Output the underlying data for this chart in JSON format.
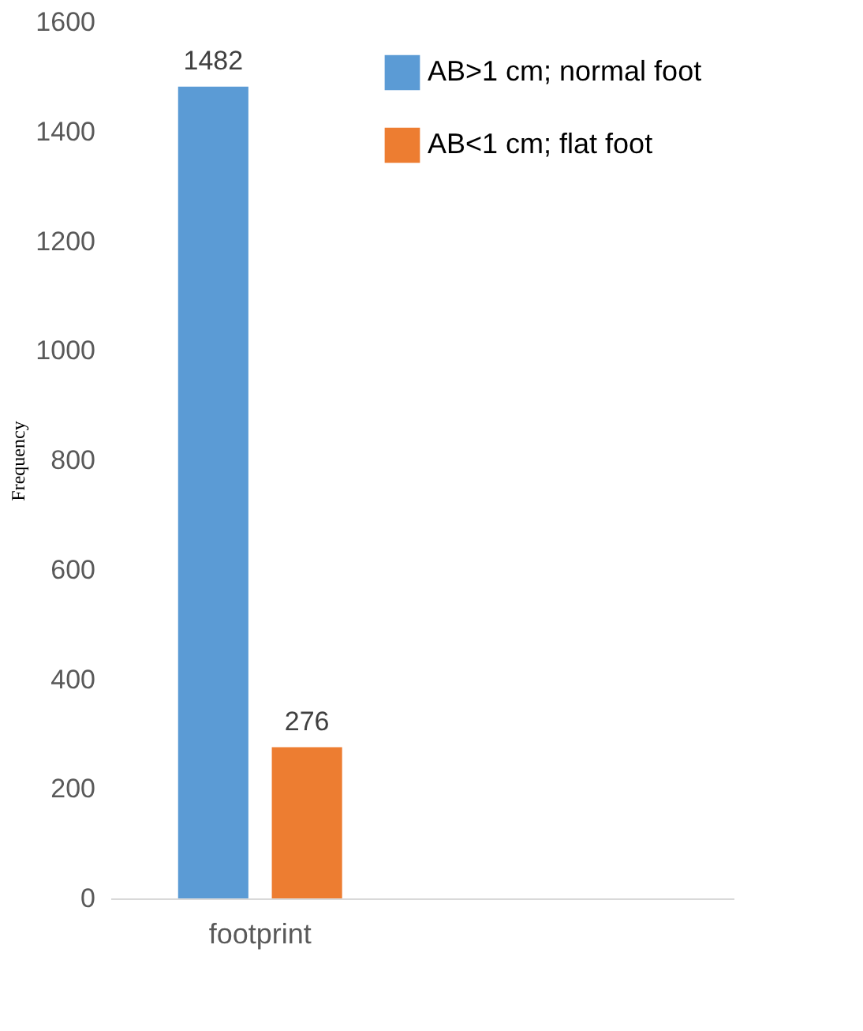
{
  "chart_data": {
    "type": "bar",
    "ylabel": "Frequency",
    "categories": [
      "footprint"
    ],
    "series": [
      {
        "name": "AB>1 cm; normal foot",
        "color": "#5b9bd5",
        "values": [
          1482
        ]
      },
      {
        "name": "AB<1 cm; flat foot",
        "color": "#ed7d31",
        "values": [
          276
        ]
      }
    ],
    "ylim": [
      0,
      1600
    ],
    "yticks": [
      0,
      200,
      400,
      600,
      800,
      1000,
      1200,
      1400,
      1600
    ],
    "data_labels": true,
    "grid": false,
    "legend": "top right"
  }
}
